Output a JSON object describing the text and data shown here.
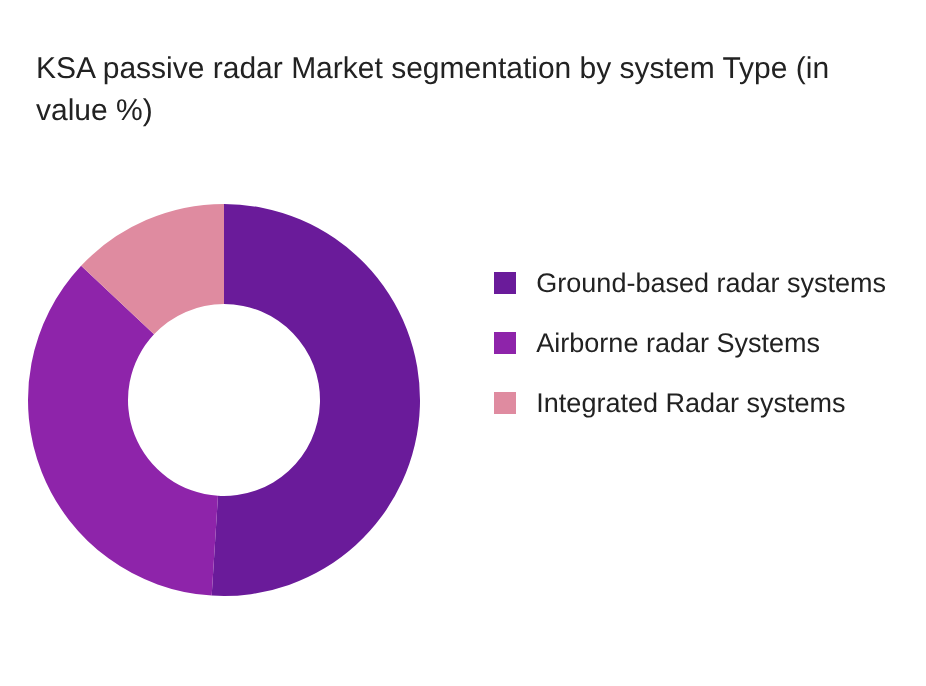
{
  "chart_data": {
    "type": "donut",
    "title": "KSA passive radar Market segmentation by system Type (in value %)",
    "categories": [
      "Ground-based radar systems",
      "Airborne radar Systems",
      "Integrated Radar systems"
    ],
    "values": [
      51,
      36,
      13
    ],
    "colors": [
      "#6a1b9a",
      "#8e24aa",
      "#df8ba0"
    ],
    "legend": "right"
  }
}
